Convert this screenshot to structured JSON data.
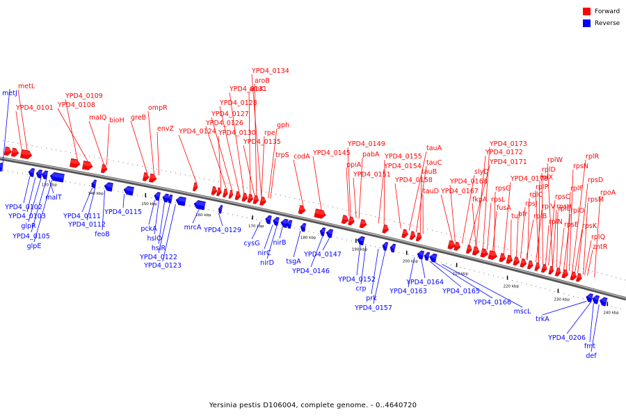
{
  "legend": {
    "forward_label": "Forward",
    "reverse_label": "Reverse",
    "forward_color": "#ff0000",
    "reverse_color": "#0000ff"
  },
  "caption": "Yersinia pestis D106004, complete genome. - 0..4640720",
  "ticks": [
    "130 kbp",
    "140 kbp",
    "150 kbp",
    "160 kbp",
    "170 kbp",
    "180 kbp",
    "190 kbp",
    "200 kbp",
    "210 kbp",
    "220 kbp",
    "230 kbp",
    "240 kbp"
  ],
  "forward_genes": [
    "metL",
    "YPD4_0101",
    "YPD4_0109",
    "YPD4_0108",
    "malQ",
    "bioH",
    "greB",
    "ompR",
    "envZ",
    "YPD4_0124",
    "YPD4_0134",
    "aroB",
    "aroK",
    "YPD4_0131",
    "YPD4_0128",
    "YPD4_0127",
    "YPD4_0126",
    "YPD4_0130",
    "gph",
    "rpe",
    "YPD4_0135",
    "trpS",
    "codA",
    "YPD4_0145",
    "YPD4_0149",
    "pabA",
    "ppiA",
    "YPD4_0151",
    "YPD4_0155",
    "tauA",
    "tauC",
    "YPD4_0154",
    "tauB",
    "YPD4_0158",
    "tauD",
    "YPD4_0173",
    "YPD4_0172",
    "YPD4_0171",
    "slyD",
    "YPD4_0168",
    "YPD4_0167",
    "rpsG",
    "fkpA",
    "rpsL",
    "fusA",
    "YPD4_0178",
    "rplW",
    "rplD",
    "rplX",
    "rplP",
    "rpsC",
    "rplC",
    "rpsJ",
    "rplV",
    "tuf",
    "bfr",
    "rplB",
    "rpsH",
    "rplE",
    "rplN",
    "rpsE",
    "rplF",
    "rplO",
    "rpsD",
    "rpsM",
    "rpoA",
    "rplR",
    "rpsN",
    "rpsK",
    "rplQ",
    "zntR"
  ],
  "reverse_genes": [
    "metJ",
    "malT",
    "YPD4_0102",
    "YPD4_0103",
    "glpR",
    "YPD4_0105",
    "glpE",
    "YPD4_0111",
    "YPD4_0112",
    "feoB",
    "YPD4_0115",
    "pckA",
    "hslO",
    "hslR",
    "YPD4_0122",
    "YPD4_0123",
    "mrcA",
    "YPD4_0129",
    "cysG",
    "nirB",
    "nirC",
    "nirD",
    "tsgA",
    "YPD4_0146",
    "YPD4_0147",
    "YPD4_0152",
    "crp",
    "prk",
    "YPD4_0157",
    "YPD4_0163",
    "YPD4_0164",
    "YPD4_0165",
    "YPD4_0166",
    "mscL",
    "trkA",
    "YPD4_0206",
    "fmt",
    "def"
  ]
}
